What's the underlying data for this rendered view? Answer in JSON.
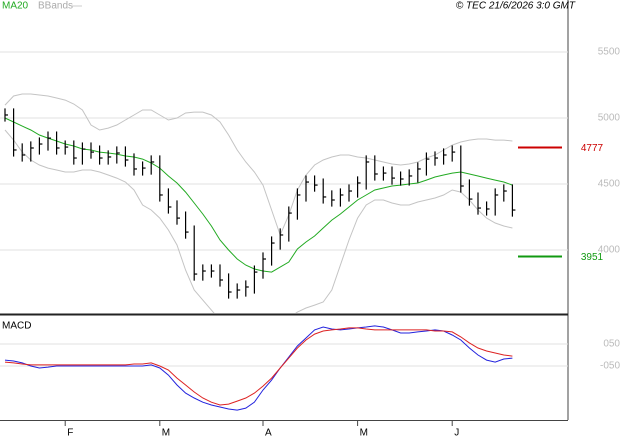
{
  "chart_data": [
    {
      "type": "ohlc",
      "copyright": "© TEC 21/6/2026 3:0 GMT",
      "ylim": [
        3523,
        5894
      ],
      "yticks": [
        4000,
        4500,
        5000,
        5500
      ],
      "grid": true,
      "ohlc": {
        "color": "#000000",
        "high": [
          5073,
          5073,
          4808,
          4823,
          4853,
          4898,
          4898,
          4830,
          4830,
          4815,
          4815,
          4792,
          4755,
          4785,
          4785,
          4732,
          4671,
          4717,
          4717,
          4467,
          4376,
          4292,
          4186,
          3891,
          3891,
          3891,
          3823,
          3747,
          3770,
          3883,
          3982,
          4103,
          4164,
          4330,
          4467,
          4565,
          4565,
          4542,
          4452,
          4467,
          4497,
          4558,
          4717,
          4717,
          4633,
          4633,
          4595,
          4611,
          4664,
          4739,
          4747,
          4770,
          4792,
          4792,
          4535,
          4436,
          4368,
          4467,
          4497,
          4497
        ],
        "low": [
          4973,
          4708,
          4670,
          4670,
          4723,
          4753,
          4723,
          4723,
          4647,
          4647,
          4692,
          4647,
          4647,
          4655,
          4632,
          4564,
          4564,
          4571,
          4367,
          4276,
          4192,
          4086,
          3768,
          3768,
          3791,
          3723,
          3632,
          3632,
          3647,
          3670,
          3783,
          3882,
          4003,
          4064,
          4230,
          4367,
          4442,
          4352,
          4329,
          4329,
          4367,
          4397,
          4458,
          4526,
          4526,
          4495,
          4488,
          4488,
          4511,
          4564,
          4639,
          4647,
          4670,
          4435,
          4336,
          4268,
          4261,
          4261,
          4367,
          4253
        ],
        "close": [
          5023,
          4758,
          4720,
          4773,
          4803,
          4848,
          4773,
          4780,
          4697,
          4765,
          4742,
          4697,
          4705,
          4735,
          4682,
          4614,
          4621,
          4667,
          4417,
          4326,
          4242,
          4136,
          3818,
          3841,
          3841,
          3773,
          3682,
          3697,
          3720,
          3833,
          3932,
          4053,
          4114,
          4280,
          4417,
          4515,
          4492,
          4402,
          4379,
          4417,
          4447,
          4508,
          4667,
          4576,
          4583,
          4545,
          4538,
          4561,
          4614,
          4689,
          4697,
          4720,
          4742,
          4485,
          4386,
          4318,
          4311,
          4417,
          4447,
          4303
        ]
      },
      "series": [
        {
          "name": "MA20",
          "color": "#22aa22",
          "values": [
            5000,
            4970,
            4939,
            4909,
            4871,
            4848,
            4826,
            4803,
            4788,
            4765,
            4758,
            4742,
            4735,
            4727,
            4712,
            4705,
            4689,
            4659,
            4621,
            4561,
            4508,
            4439,
            4356,
            4273,
            4182,
            4076,
            4000,
            3932,
            3886,
            3856,
            3841,
            3833,
            3871,
            3909,
            4008,
            4061,
            4106,
            4167,
            4227,
            4273,
            4326,
            4379,
            4417,
            4455,
            4470,
            4485,
            4492,
            4500,
            4508,
            4530,
            4553,
            4568,
            4583,
            4591,
            4576,
            4561,
            4545,
            4530,
            4515,
            4492
          ]
        },
        {
          "name": "BBands",
          "color": "#c4c4c4",
          "upper": [
            5098,
            5167,
            5182,
            5182,
            5174,
            5167,
            5152,
            5136,
            5106,
            5061,
            4947,
            4909,
            4924,
            4947,
            4985,
            5023,
            5061,
            5061,
            5023,
            4985,
            5000,
            5038,
            5045,
            5045,
            5023,
            4970,
            4871,
            4758,
            4667,
            4591,
            4492,
            4303,
            4114,
            4265,
            4455,
            4568,
            4644,
            4682,
            4705,
            4720,
            4720,
            4705,
            4697,
            4682,
            4667,
            4652,
            4644,
            4652,
            4667,
            4697,
            4720,
            4758,
            4795,
            4818,
            4833,
            4841,
            4841,
            4833,
            4833,
            4826
          ],
          "lower": [
            4909,
            4833,
            4742,
            4682,
            4644,
            4621,
            4606,
            4591,
            4591,
            4606,
            4606,
            4591,
            4568,
            4545,
            4515,
            4455,
            4341,
            4303,
            4242,
            4152,
            4038,
            3848,
            3697,
            3621,
            3545,
            3470,
            3394,
            3356,
            3333,
            3318,
            3318,
            3356,
            3432,
            3485,
            3530,
            3561,
            3583,
            3606,
            3697,
            3886,
            4076,
            4242,
            4341,
            4379,
            4379,
            4356,
            4341,
            4341,
            4364,
            4379,
            4394,
            4417,
            4455,
            4439,
            4379,
            4303,
            4242,
            4205,
            4182,
            4167
          ]
        }
      ],
      "markers": [
        {
          "value": 4777,
          "color": "#cc0000"
        },
        {
          "value": 3951,
          "color": "#119911"
        }
      ]
    },
    {
      "type": "line",
      "title": "MACD",
      "categories": [
        null,
        null,
        null,
        null,
        null,
        null,
        null,
        "F",
        null,
        null,
        null,
        null,
        null,
        null,
        null,
        null,
        null,
        null,
        "M",
        null,
        null,
        null,
        null,
        null,
        null,
        null,
        null,
        null,
        null,
        null,
        "A",
        null,
        null,
        null,
        null,
        null,
        null,
        null,
        null,
        null,
        null,
        "M",
        null,
        null,
        null,
        null,
        null,
        null,
        null,
        null,
        null,
        null,
        "J",
        null,
        null,
        null,
        null,
        null,
        null,
        null
      ],
      "ylim": [
        -295,
        168
      ],
      "yticks": [
        {
          "value": 50,
          "label": "050"
        },
        {
          "value": -50,
          "label": "-050"
        }
      ],
      "grid": true,
      "series": [
        {
          "color": "#2222dd",
          "values": [
            -23,
            -27,
            -36,
            -50,
            -59,
            -55,
            -50,
            -50,
            -50,
            -50,
            -50,
            -50,
            -50,
            -50,
            -50,
            -50,
            -50,
            -45,
            -59,
            -91,
            -136,
            -173,
            -195,
            -214,
            -227,
            -236,
            -245,
            -250,
            -241,
            -214,
            -159,
            -114,
            -59,
            -9,
            41,
            77,
            114,
            127,
            118,
            114,
            118,
            123,
            127,
            132,
            127,
            114,
            100,
            100,
            105,
            109,
            114,
            109,
            91,
            68,
            32,
            0,
            -23,
            -32,
            -18,
            -14
          ]
        },
        {
          "color": "#dd2222",
          "values": [
            -32,
            -36,
            -41,
            -45,
            -45,
            -45,
            -45,
            -45,
            -45,
            -45,
            -45,
            -45,
            -45,
            -45,
            -45,
            -41,
            -41,
            -36,
            -50,
            -68,
            -105,
            -136,
            -168,
            -195,
            -214,
            -227,
            -223,
            -209,
            -195,
            -173,
            -141,
            -105,
            -59,
            -14,
            32,
            68,
            95,
            109,
            114,
            118,
            123,
            123,
            118,
            114,
            114,
            114,
            114,
            114,
            114,
            114,
            109,
            109,
            105,
            82,
            55,
            32,
            18,
            9,
            0,
            -5
          ]
        }
      ]
    }
  ]
}
